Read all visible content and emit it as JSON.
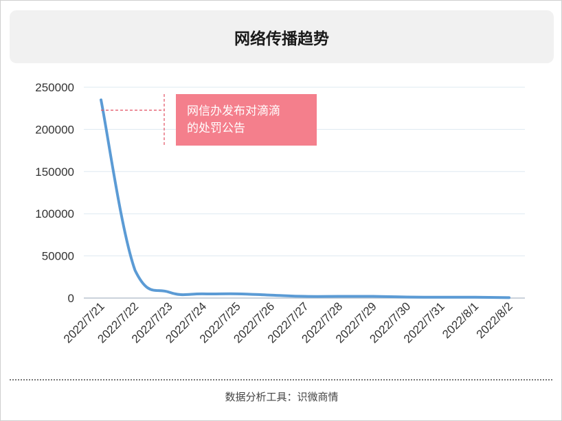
{
  "title": "网络传播趋势",
  "footer": "数据分析工具：识微商情",
  "colors": {
    "line": "#5b9bd5",
    "grid": "#dde8f1",
    "annotation_bg": "#f47f8c",
    "annotation_line": "#e45c6c"
  },
  "chart_data": {
    "type": "line",
    "title": "网络传播趋势",
    "xlabel": "",
    "ylabel": "",
    "categories": [
      "2022/7/21",
      "2022/7/22",
      "2022/7/23",
      "2022/7/24",
      "2022/7/25",
      "2022/7/26",
      "2022/7/27",
      "2022/7/28",
      "2022/7/29",
      "2022/7/30",
      "2022/7/31",
      "2022/8/1",
      "2022/8/2"
    ],
    "series": [
      {
        "values": [
          235000,
          33000,
          7000,
          5000,
          5000,
          3500,
          2000,
          2000,
          2000,
          1200,
          1000,
          1000,
          500
        ]
      }
    ],
    "ylim": [
      0,
      250000
    ],
    "yticks": [
      0,
      50000,
      100000,
      150000,
      200000,
      250000
    ],
    "grid": true,
    "legend": "none",
    "annotation": {
      "text_lines": [
        "网信办发布对滴滴",
        "的处罚公告"
      ],
      "target_category": "2022/7/21"
    }
  }
}
